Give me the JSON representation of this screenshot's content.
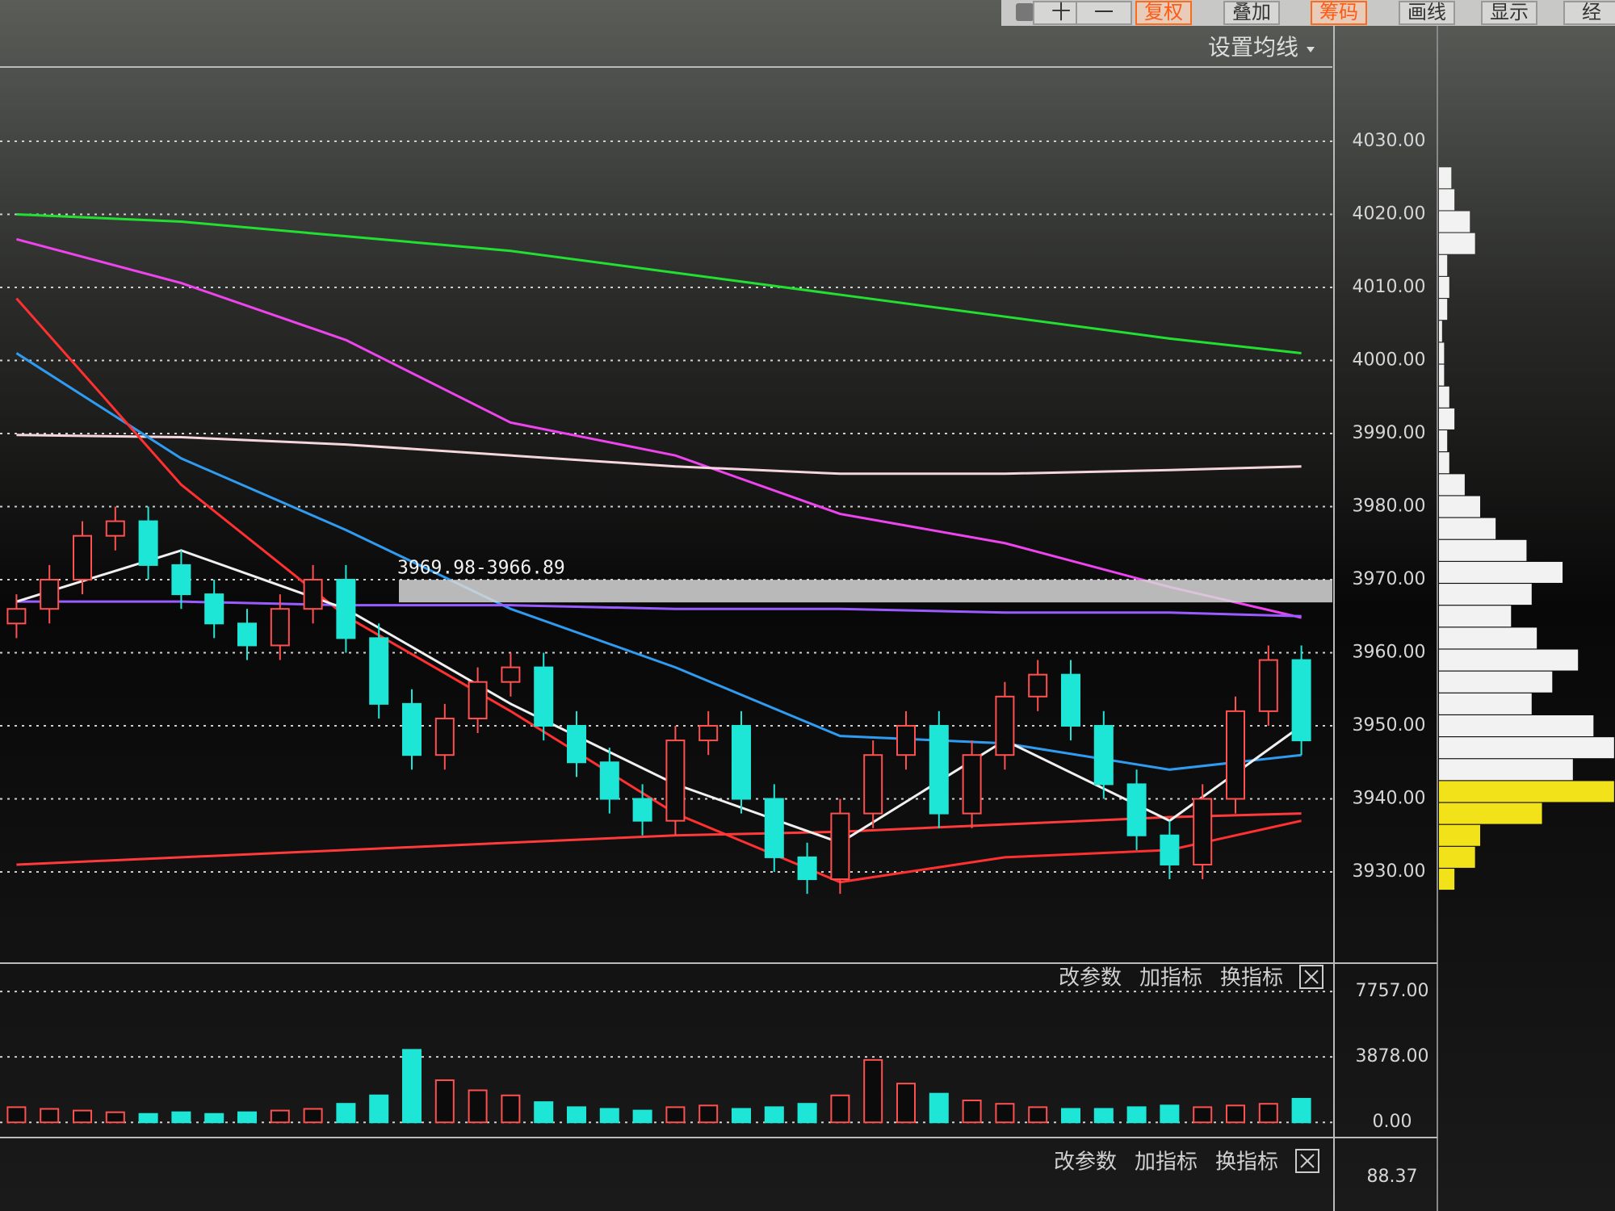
{
  "toolbar": [
    {
      "label": "十"
    },
    {
      "label": "一"
    },
    {
      "label": "复权",
      "active": true
    },
    {
      "label": "叠加"
    },
    {
      "label": "筹码",
      "active": true
    },
    {
      "label": "画线"
    },
    {
      "label": "显示"
    },
    {
      "label": "经"
    }
  ],
  "ma_setting": "设置均线",
  "chart_data": [
    {
      "type": "candlestick",
      "ylim": [
        3920,
        4040
      ],
      "yticks": [
        {
          "value": 4030,
          "label": "4030.00"
        },
        {
          "value": 4020,
          "label": "4020.00"
        },
        {
          "value": 4010,
          "label": "4010.00"
        },
        {
          "value": 4000,
          "label": "4000.00"
        },
        {
          "value": 3990,
          "label": "3990.00"
        },
        {
          "value": 3980,
          "label": "3980.00"
        },
        {
          "value": 3970,
          "label": "3970.00"
        },
        {
          "value": 3960,
          "label": "3960.00"
        },
        {
          "value": 3950,
          "label": "3950.00"
        },
        {
          "value": 3940,
          "label": "3940.00"
        },
        {
          "value": 3930,
          "label": "3930.00"
        }
      ],
      "grid": true,
      "up_color": "#ff5050",
      "down_color": "#1ee6d6",
      "open": [
        3964,
        3966,
        3970,
        3976,
        3978,
        3972,
        3968,
        3964,
        3961,
        3966,
        3970,
        3962,
        3953,
        3946,
        3951,
        3956,
        3958,
        3950,
        3945,
        3940,
        3937,
        3948,
        3950,
        3940,
        3932,
        3929,
        3938,
        3946,
        3950,
        3938,
        3946,
        3954,
        3957,
        3950,
        3942,
        3935,
        3931,
        3940,
        3952,
        3959
      ],
      "high": [
        3968,
        3972,
        3978,
        3980,
        3980,
        3974,
        3970,
        3966,
        3968,
        3972,
        3972,
        3964,
        3955,
        3953,
        3958,
        3960,
        3960,
        3952,
        3947,
        3942,
        3950,
        3952,
        3952,
        3942,
        3934,
        3940,
        3948,
        3952,
        3952,
        3948,
        3956,
        3959,
        3959,
        3952,
        3944,
        3937,
        3942,
        3954,
        3961,
        3961
      ],
      "low": [
        3962,
        3964,
        3968,
        3974,
        3970,
        3966,
        3962,
        3959,
        3959,
        3964,
        3960,
        3951,
        3944,
        3944,
        3949,
        3954,
        3948,
        3943,
        3938,
        3935,
        3935,
        3946,
        3938,
        3930,
        3927,
        3927,
        3936,
        3944,
        3936,
        3936,
        3944,
        3952,
        3948,
        3940,
        3933,
        3929,
        3929,
        3938,
        3950,
        3946
      ],
      "close": [
        3966,
        3970,
        3976,
        3978,
        3972,
        3968,
        3964,
        3961,
        3966,
        3970,
        3962,
        3953,
        3946,
        3951,
        3956,
        3958,
        3950,
        3945,
        3940,
        3937,
        3948,
        3950,
        3940,
        3932,
        3929,
        3938,
        3946,
        3950,
        3938,
        3946,
        3954,
        3957,
        3950,
        3942,
        3935,
        3931,
        3940,
        3952,
        3959,
        3948
      ],
      "zone": {
        "label": "3969.98-3966.89",
        "high": 3969.98,
        "low": 3966.89,
        "x": 12
      },
      "lines": {
        "x": [
          0,
          5,
          10,
          15,
          20,
          25,
          30,
          35,
          39
        ],
        "series": [
          {
            "color": "#22e032",
            "values": [
              4020,
              4019,
              4017,
              4015,
              4012,
              4009,
              4006,
              4003,
              4001
            ]
          },
          {
            "color": "#ee44ee",
            "values": [
              4016.6,
              4010.6,
              4002.8,
              3991.5,
              3987,
              3979,
              3975,
              3969,
              3964.8
            ]
          },
          {
            "color": "#f4d6dc",
            "values": [
              3989.8,
              3989.5,
              3988.5,
              3987,
              3985.5,
              3984.5,
              3984.5,
              3985,
              3985.5
            ]
          },
          {
            "color": "#2f9cf2",
            "values": [
              4001,
              3986.6,
              3976.8,
              3966,
              3958,
              3948.6,
              3947.6,
              3944,
              3946
            ]
          },
          {
            "color": "#ff3030",
            "values": [
              4008.5,
              3983,
              3965,
              3952,
              3938,
              3928.6,
              3932,
              3933,
              3937
            ]
          },
          {
            "color": "#ff3a3a",
            "values": [
              3931,
              3932,
              3933,
              3934,
              3935,
              3935.5,
              3936.5,
              3937.5,
              3938
            ]
          },
          {
            "color": "#9a5cff",
            "values": [
              3967,
              3967,
              3966.5,
              3966.5,
              3966,
              3966,
              3965.5,
              3965.5,
              3965
            ]
          },
          {
            "color": "#f0f0f0",
            "values": [
              3967,
              3974,
              3966,
              3953,
              3942,
              3934,
              3948,
              3937,
              3950
            ]
          }
        ]
      }
    },
    {
      "type": "bar",
      "ylim": [
        -900,
        9200
      ],
      "yticks": [
        {
          "value": 7757,
          "label": "7757.00"
        },
        {
          "value": 3878,
          "label": "3878.00"
        },
        {
          "value": 0,
          "label": "0.00"
        }
      ],
      "grid": true,
      "values": [
        900,
        800,
        700,
        600,
        500,
        600,
        500,
        600,
        700,
        800,
        1100,
        1600,
        4300,
        2500,
        1900,
        1600,
        1200,
        900,
        800,
        700,
        900,
        1000,
        800,
        900,
        1100,
        1600,
        3700,
        2300,
        1700,
        1300,
        1100,
        900,
        800,
        800,
        900,
        1000,
        900,
        1000,
        1100,
        1400
      ],
      "buttons": [
        "改参数",
        "加指标",
        "换指标"
      ]
    },
    {
      "type": "hbar",
      "color": "#f2f2f2",
      "low_color": "#f2e21a",
      "split": 3942,
      "prices": [
        4025,
        4022,
        4019,
        4016,
        4013,
        4010,
        4007,
        4004,
        4001,
        3998,
        3995,
        3992,
        3989,
        3986,
        3983,
        3980,
        3977,
        3974,
        3971,
        3968,
        3965,
        3962,
        3959,
        3956,
        3953,
        3950,
        3947,
        3944,
        3941,
        3938,
        3935,
        3932,
        3929
      ],
      "values": [
        12,
        15,
        30,
        35,
        8,
        10,
        8,
        3,
        5,
        5,
        10,
        15,
        8,
        10,
        25,
        40,
        55,
        85,
        120,
        90,
        70,
        95,
        135,
        110,
        90,
        150,
        170,
        130,
        170,
        100,
        40,
        35,
        15
      ]
    }
  ],
  "lower_pane": {
    "buttons": [
      "改参数",
      "加指标",
      "换指标"
    ],
    "tick_label": "88.37"
  }
}
